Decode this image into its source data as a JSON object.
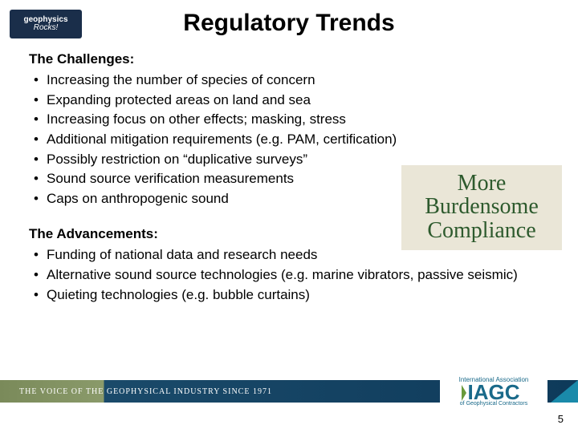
{
  "logoTop": {
    "line1": "geophysics",
    "line2": "Rocks!"
  },
  "title": "Regulatory Trends",
  "challenges": {
    "heading": "The Challenges:",
    "items": [
      "Increasing the number of species of concern",
      "Expanding protected areas on land and sea",
      "Increasing focus on other effects; masking, stress",
      "Additional mitigation requirements (e.g. PAM, certification)",
      "Possibly restriction on “duplicative surveys”",
      "Sound source verification measurements",
      "Caps on anthropogenic sound"
    ]
  },
  "advancements": {
    "heading": "The Advancements:",
    "items": [
      "Funding of national data and research needs",
      "Alternative sound source technologies (e.g. marine vibrators, passive seismic)",
      "Quieting technologies (e.g. bubble curtains)"
    ]
  },
  "callout": {
    "l1": "More",
    "l2": "Burdensome",
    "l3": "Compliance"
  },
  "footer": {
    "tagline": "THE VOICE OF THE GEOPHYSICAL INDUSTRY SINCE 1971",
    "logoTop": "International Association",
    "logoMain": "IAGC",
    "logoSub": "of Geophysical Contractors"
  },
  "pageNumber": "5",
  "colors": {
    "calloutBg": "#eae6d7",
    "calloutText": "#2d5a2d",
    "bandDark": "#0e3a5a",
    "bandOlive": "#8a9a6a",
    "accentTeal": "#1a8aaa",
    "logoTopBg": "#1a2e4a"
  }
}
